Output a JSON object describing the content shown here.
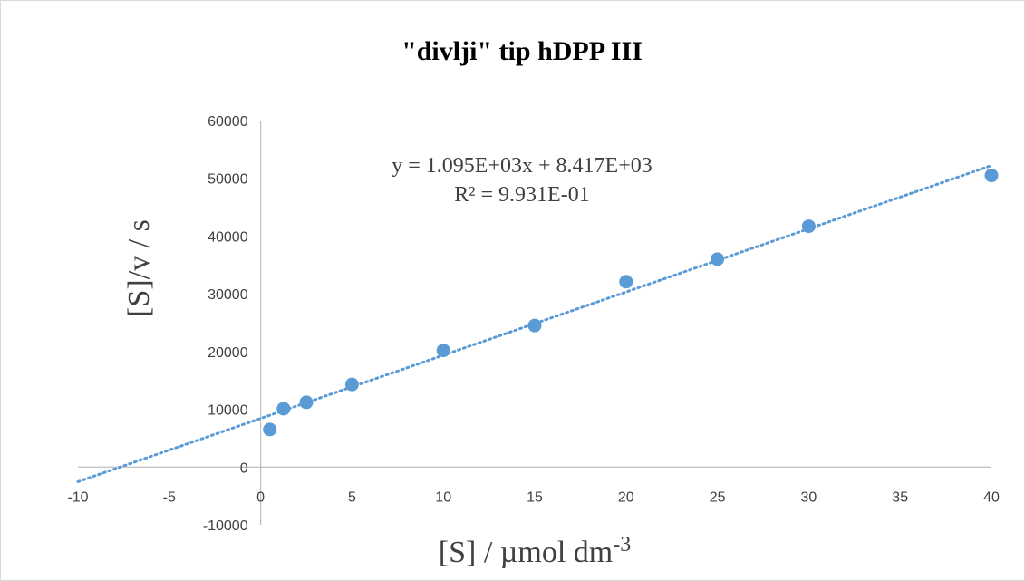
{
  "chart_data": {
    "type": "scatter",
    "title": "\"divlji\" tip hDPP III",
    "xlabel": "[S] / µmol dm",
    "xlabel_superscript": "-3",
    "ylabel": "[S]/v / s",
    "xlim": [
      -10,
      40
    ],
    "ylim": [
      -10000,
      60000
    ],
    "x_ticks": [
      -10,
      -5,
      0,
      5,
      10,
      15,
      20,
      25,
      30,
      35,
      40
    ],
    "y_ticks": [
      -10000,
      0,
      10000,
      20000,
      30000,
      40000,
      50000,
      60000
    ],
    "grid": false,
    "point_color": "#5b9bd5",
    "trendline_color": "#5b9bd5",
    "series": [
      {
        "x": [
          0.5,
          1.25,
          2.5,
          5,
          10,
          15,
          20,
          25,
          30,
          40
        ],
        "y": [
          6500,
          10100,
          11200,
          14300,
          20200,
          24500,
          32100,
          36000,
          41700,
          50500
        ]
      }
    ],
    "trendline": {
      "type": "linear",
      "slope": 1095,
      "intercept": 8417,
      "equation": "y = 1.095E+03x + 8.417E+03",
      "r2_label": "R² = 9.931E-01"
    }
  }
}
